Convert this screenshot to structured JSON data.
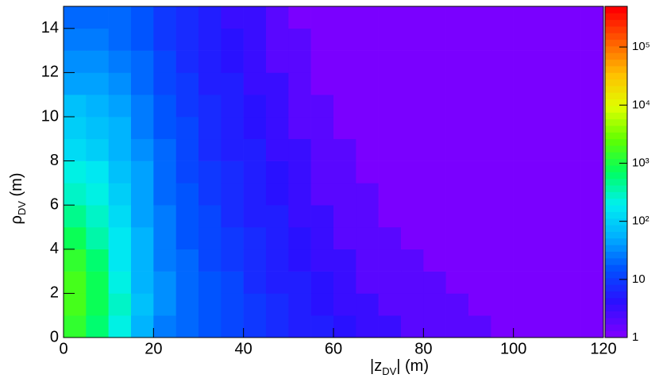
{
  "chart_data": {
    "type": "heatmap",
    "xlabel": "|z",
    "xlabel_sub": "DV",
    "xlabel_rest": "| (m)",
    "ylabel": "ρ",
    "ylabel_sub": "DV",
    "ylabel_rest": " (m)",
    "x_bins": [
      0,
      5,
      10,
      15,
      20,
      25,
      30,
      35,
      40,
      45,
      50,
      55,
      60,
      65,
      70,
      75,
      80,
      85,
      90,
      95,
      100,
      105,
      110,
      115,
      120
    ],
    "y_bins": [
      0,
      1,
      2,
      3,
      4,
      5,
      6,
      7,
      8,
      9,
      10,
      11,
      12,
      13,
      14,
      15
    ],
    "z": [
      [
        1500,
        600,
        200,
        60,
        30,
        20,
        15,
        12,
        10,
        8,
        6,
        5,
        4,
        3,
        3,
        2,
        2,
        2,
        2,
        1,
        1,
        1,
        1,
        1
      ],
      [
        2000,
        900,
        250,
        70,
        35,
        22,
        15,
        12,
        9,
        7,
        5,
        4,
        3,
        3,
        2,
        2,
        2,
        2,
        1,
        1,
        1,
        1,
        1,
        1
      ],
      [
        1800,
        800,
        220,
        65,
        32,
        20,
        14,
        11,
        8,
        6,
        5,
        4,
        3,
        2,
        2,
        2,
        2,
        1,
        1,
        1,
        1,
        1,
        1,
        1
      ],
      [
        1200,
        600,
        180,
        60,
        30,
        18,
        13,
        10,
        8,
        6,
        4,
        3,
        3,
        2,
        2,
        2,
        1,
        1,
        1,
        1,
        1,
        1,
        1,
        1
      ],
      [
        800,
        400,
        150,
        55,
        28,
        17,
        12,
        9,
        7,
        5,
        4,
        3,
        2,
        2,
        2,
        1,
        1,
        1,
        1,
        1,
        1,
        1,
        1,
        1
      ],
      [
        500,
        280,
        120,
        50,
        25,
        16,
        11,
        8,
        6,
        5,
        3,
        3,
        2,
        2,
        1,
        1,
        1,
        1,
        1,
        1,
        1,
        1,
        1,
        1
      ],
      [
        300,
        200,
        100,
        45,
        23,
        15,
        10,
        7,
        6,
        4,
        3,
        2,
        2,
        2,
        1,
        1,
        1,
        1,
        1,
        1,
        1,
        1,
        1,
        1
      ],
      [
        200,
        150,
        80,
        40,
        20,
        13,
        9,
        7,
        5,
        4,
        3,
        2,
        2,
        1,
        1,
        1,
        1,
        1,
        1,
        1,
        1,
        1,
        1,
        1
      ],
      [
        140,
        110,
        65,
        35,
        18,
        12,
        8,
        6,
        5,
        3,
        3,
        2,
        2,
        1,
        1,
        1,
        1,
        1,
        1,
        1,
        1,
        1,
        1,
        1
      ],
      [
        100,
        80,
        55,
        30,
        16,
        11,
        8,
        6,
        4,
        3,
        2,
        2,
        1,
        1,
        1,
        1,
        1,
        1,
        1,
        1,
        1,
        1,
        1,
        1
      ],
      [
        70,
        60,
        45,
        26,
        15,
        10,
        7,
        5,
        4,
        3,
        2,
        2,
        1,
        1,
        1,
        1,
        1,
        1,
        1,
        1,
        1,
        1,
        1,
        1
      ],
      [
        50,
        45,
        35,
        22,
        13,
        9,
        6,
        5,
        3,
        3,
        2,
        1,
        1,
        1,
        1,
        1,
        1,
        1,
        1,
        1,
        1,
        1,
        1,
        1
      ],
      [
        38,
        35,
        28,
        18,
        12,
        8,
        6,
        4,
        3,
        2,
        2,
        1,
        1,
        1,
        1,
        1,
        1,
        1,
        1,
        1,
        1,
        1,
        1,
        1
      ],
      [
        28,
        27,
        22,
        16,
        10,
        7,
        5,
        4,
        3,
        2,
        2,
        1,
        1,
        1,
        1,
        1,
        1,
        1,
        1,
        1,
        1,
        1,
        1,
        1
      ],
      [
        22,
        21,
        18,
        14,
        9,
        7,
        5,
        3,
        3,
        2,
        1,
        1,
        1,
        1,
        1,
        1,
        1,
        1,
        1,
        1,
        1,
        1,
        1,
        1
      ]
    ],
    "xlim": [
      0,
      120
    ],
    "xticks": [
      0,
      20,
      40,
      60,
      80,
      100,
      120
    ],
    "ylim": [
      0,
      15
    ],
    "yticks": [
      0,
      2,
      4,
      6,
      8,
      10,
      12,
      14
    ],
    "zlim": [
      1,
      500000
    ],
    "zlog": true,
    "zticks": [
      1,
      10,
      {
        "value": 100,
        "label": "10²"
      },
      {
        "value": 1000,
        "label": "10³"
      },
      {
        "value": 10000,
        "label": "10⁴"
      },
      {
        "value": 100000,
        "label": "10⁵"
      }
    ],
    "colors": [
      "#7a00ff",
      "#2a10ff",
      "#0050ff",
      "#00b0ff",
      "#00f0f0",
      "#00ff60",
      "#60ff00",
      "#e0ff00",
      "#ffc000",
      "#ff6000",
      "#ff0000"
    ]
  }
}
